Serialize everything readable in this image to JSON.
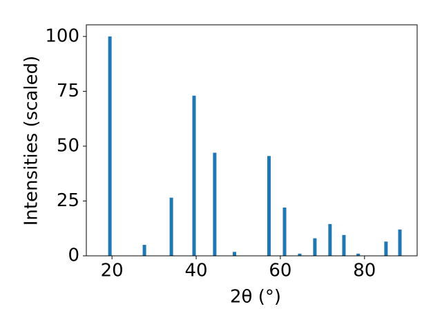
{
  "chart_data": {
    "type": "bar",
    "xlabel": "2θ (°)",
    "ylabel": "Intensities (scaled)",
    "x": [
      19.5,
      27.7,
      34.1,
      39.5,
      44.4,
      49.1,
      57.3,
      61.0,
      64.6,
      68.2,
      71.8,
      75.1,
      78.5,
      85.1,
      88.4
    ],
    "values": [
      100,
      5,
      26.5,
      73,
      47,
      1.8,
      45.5,
      22,
      1,
      8,
      14.5,
      9.5,
      1,
      6.5,
      12
    ],
    "color": "#1f77b4",
    "xlim": [
      13.9,
      92.5
    ],
    "xticks": [
      20,
      40,
      60,
      80
    ],
    "ylim": [
      0,
      105.3
    ],
    "yticks": [
      0,
      25,
      50,
      75,
      100
    ]
  }
}
